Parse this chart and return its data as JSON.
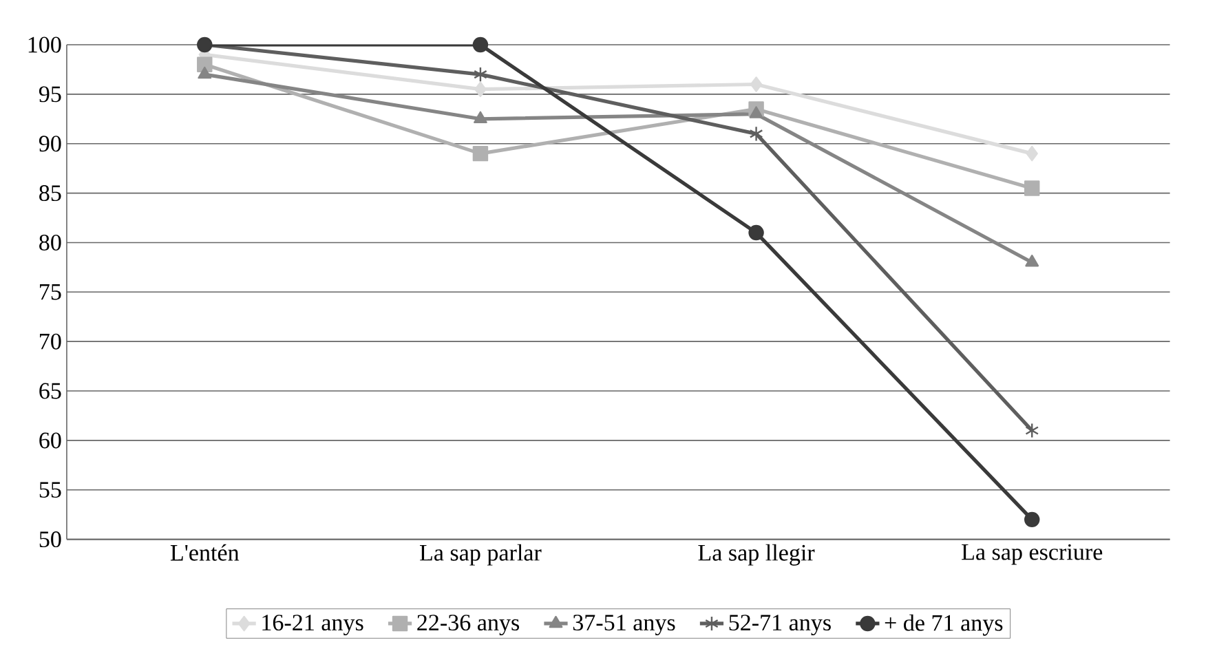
{
  "chart_data": {
    "type": "line",
    "categories": [
      "L'entén",
      "La sap parlar",
      "La sap llegir",
      "La sap escriure"
    ],
    "series": [
      {
        "name": "16-21 anys",
        "color": "#dcdcdc",
        "marker": "diamond",
        "values": [
          99,
          95.5,
          96,
          89
        ]
      },
      {
        "name": "22-36 anys",
        "color": "#b0b0b0",
        "marker": "square",
        "values": [
          98,
          89,
          93.5,
          85.5
        ]
      },
      {
        "name": "37-51 anys",
        "color": "#858585",
        "marker": "triangle",
        "values": [
          97,
          92.5,
          93,
          78
        ]
      },
      {
        "name": "52-71 anys",
        "color": "#5e5e5e",
        "marker": "cross",
        "values": [
          100,
          97,
          91,
          61
        ]
      },
      {
        "name": "+ de 71 anys",
        "color": "#3a3a3a",
        "marker": "circle",
        "values": [
          100,
          100,
          81,
          52
        ]
      }
    ],
    "ylim": [
      50,
      100
    ],
    "yticks": [
      50,
      55,
      60,
      65,
      70,
      75,
      80,
      85,
      90,
      95,
      100
    ],
    "grid": "y",
    "legend": "bottom"
  }
}
